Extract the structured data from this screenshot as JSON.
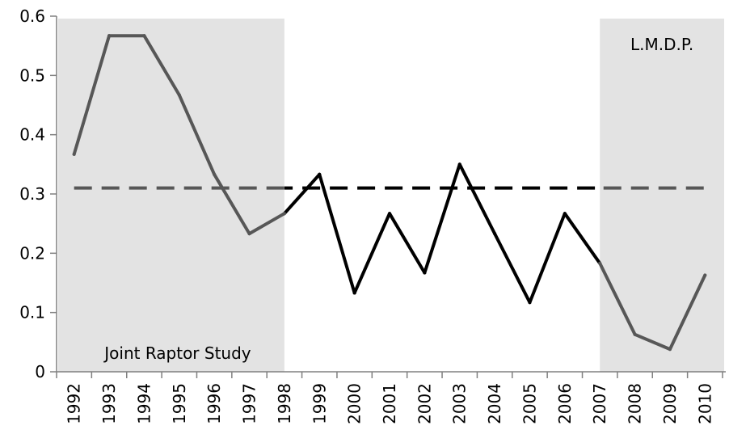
{
  "chart_data": {
    "type": "line",
    "title": "",
    "xlabel": "",
    "ylabel": "",
    "categories": [
      "1992",
      "1993",
      "1994",
      "1995",
      "1996",
      "1997",
      "1998",
      "1999",
      "2000",
      "2001",
      "2002",
      "2003",
      "2004",
      "2005",
      "2006",
      "2007",
      "2008",
      "2009",
      "2010"
    ],
    "ylim": [
      0,
      0.6
    ],
    "yticks": [
      "0",
      "0.1",
      "0.2",
      "0.3",
      "0.4",
      "0.5",
      "0.6"
    ],
    "grid": false,
    "series": [
      {
        "values": [
          0.367,
          0.567,
          0.567,
          0.467,
          0.333,
          0.233,
          0.267,
          0.333,
          0.133,
          0.267,
          0.167,
          0.35,
          0.233,
          0.117,
          0.267,
          0.183,
          0.063,
          0.038,
          0.163
        ]
      }
    ],
    "reference_line": {
      "value": 0.31,
      "style": "dashed"
    },
    "shaded_regions": [
      {
        "label": "Joint Raptor Study",
        "from": "1992",
        "to": "1997"
      },
      {
        "label": "L.M.D.P.",
        "from": "2008",
        "to": "2010"
      }
    ],
    "colors": {
      "shaded": "#e3e3e3",
      "line_in_shade": "#575757",
      "line_outside": "#000000",
      "ref_in_shade": "#575757",
      "ref_outside": "#000000",
      "axis": "#808080"
    }
  }
}
